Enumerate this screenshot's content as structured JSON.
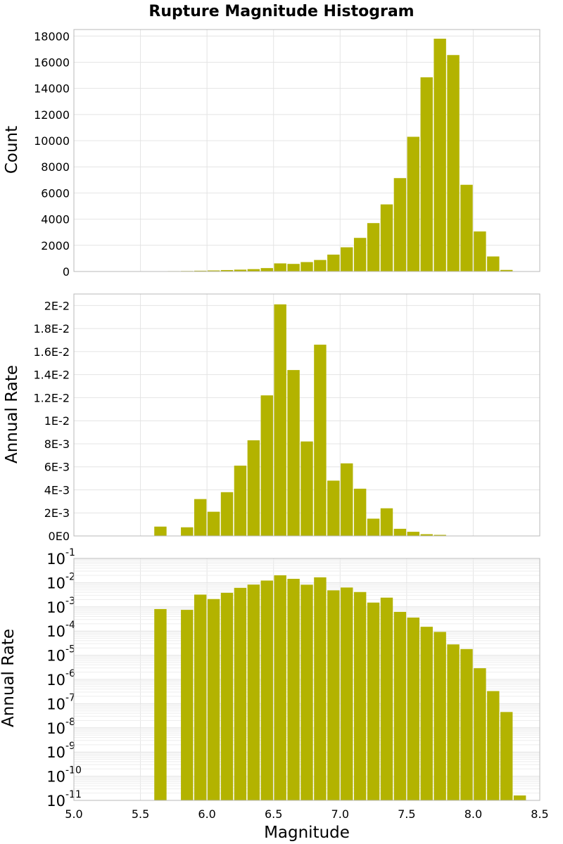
{
  "chart_data": {
    "title": "Rupture Magnitude Histogram",
    "xlabel": "Magnitude",
    "xlim": [
      5.0,
      8.5
    ],
    "x_ticks": [
      "5.0",
      "5.5",
      "6.0",
      "6.5",
      "7.0",
      "7.5",
      "8.0",
      "8.5"
    ],
    "bar_color": "#b3b300",
    "bin_width": 0.1,
    "panels": [
      {
        "type": "bar",
        "ylabel": "Count",
        "scale": "linear",
        "ylim": [
          0,
          18500
        ],
        "y_ticks": [
          "0",
          "2000",
          "4000",
          "6000",
          "8000",
          "10000",
          "12000",
          "14000",
          "16000",
          "18000"
        ],
        "grid": true,
        "x": [
          5.55,
          5.65,
          5.75,
          5.85,
          5.95,
          6.05,
          6.15,
          6.25,
          6.35,
          6.45,
          6.55,
          6.65,
          6.75,
          6.85,
          6.95,
          7.05,
          7.15,
          7.25,
          7.35,
          7.45,
          7.55,
          7.65,
          7.75,
          7.85,
          7.95,
          8.05,
          8.15,
          8.25
        ],
        "values": [
          10,
          20,
          30,
          40,
          60,
          80,
          110,
          140,
          180,
          260,
          620,
          580,
          720,
          880,
          1290,
          1850,
          2570,
          3700,
          5130,
          7140,
          10300,
          14850,
          17800,
          16550,
          6630,
          3060,
          1150,
          120
        ]
      },
      {
        "type": "bar",
        "ylabel": "Annual Rate",
        "scale": "linear",
        "ylim": [
          0,
          0.021
        ],
        "y_ticks": [
          "0E0",
          "2E-3",
          "4E-3",
          "6E-3",
          "8E-3",
          "1E-2",
          "1.2E-2",
          "1.4E-2",
          "1.6E-2",
          "1.8E-2",
          "2E-2"
        ],
        "grid": true,
        "x": [
          5.65,
          5.85,
          5.95,
          6.05,
          6.15,
          6.25,
          6.35,
          6.45,
          6.55,
          6.65,
          6.75,
          6.85,
          6.95,
          7.05,
          7.15,
          7.25,
          7.35,
          7.45,
          7.55,
          7.65,
          7.75,
          7.85,
          7.95,
          8.05,
          8.15,
          8.25
        ],
        "values": [
          0.00081,
          0.00075,
          0.0032,
          0.0021,
          0.0038,
          0.0061,
          0.0083,
          0.0122,
          0.0201,
          0.0144,
          0.0082,
          0.0166,
          0.0048,
          0.0063,
          0.0041,
          0.0015,
          0.0024,
          0.00062,
          0.00036,
          0.00015,
          9.2e-05,
          2.8e-05,
          1.8e-05,
          2.9e-06,
          3.3e-07,
          4.5e-08
        ]
      },
      {
        "type": "bar",
        "ylabel": "Annual Rate",
        "scale": "log",
        "ylim_exp": [
          -11,
          -1
        ],
        "y_tick_exponents": [
          "-1",
          "-2",
          "-3",
          "-4",
          "-5",
          "-6",
          "-7",
          "-8",
          "-9",
          "-10",
          "-11"
        ],
        "y_tick_base": "10",
        "grid": true,
        "x": [
          5.65,
          5.85,
          5.95,
          6.05,
          6.15,
          6.25,
          6.35,
          6.45,
          6.55,
          6.65,
          6.75,
          6.85,
          6.95,
          7.05,
          7.15,
          7.25,
          7.35,
          7.45,
          7.55,
          7.65,
          7.75,
          7.85,
          7.95,
          8.05,
          8.15,
          8.25,
          8.35
        ],
        "values": [
          0.00081,
          0.00075,
          0.0032,
          0.0021,
          0.0038,
          0.0061,
          0.0083,
          0.0122,
          0.0201,
          0.0144,
          0.0082,
          0.0166,
          0.0048,
          0.0063,
          0.0041,
          0.0015,
          0.0024,
          0.00062,
          0.00036,
          0.00015,
          9.2e-05,
          2.8e-05,
          1.8e-05,
          2.9e-06,
          3.3e-07,
          4.5e-08,
          1.6e-11
        ]
      }
    ]
  }
}
